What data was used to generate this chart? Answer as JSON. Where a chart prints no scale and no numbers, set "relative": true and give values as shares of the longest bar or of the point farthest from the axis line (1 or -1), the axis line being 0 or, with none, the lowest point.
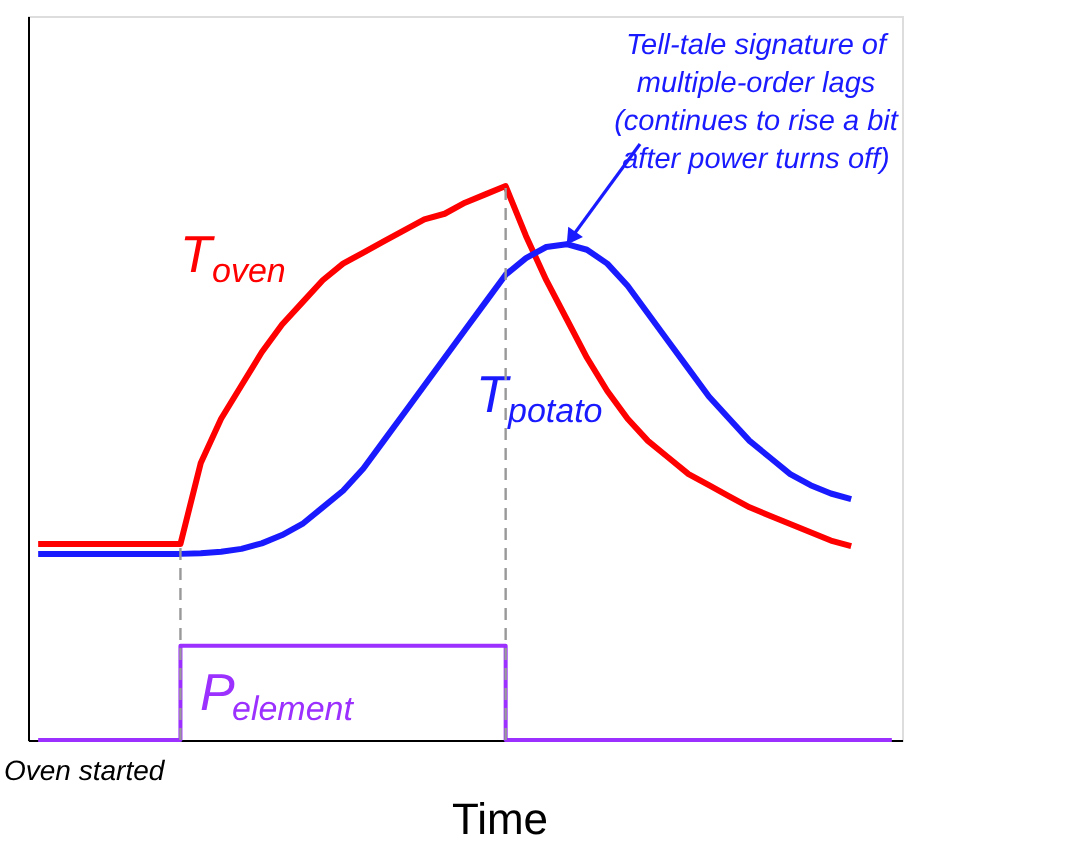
{
  "chart_data": {
    "type": "line",
    "relative": true,
    "xlabel": "Time",
    "tick_labels": false,
    "grid": false,
    "marker": "none",
    "line_style": "solid",
    "categories": [
      null,
      null,
      null,
      null,
      null,
      null,
      null,
      null,
      null,
      null,
      null,
      null,
      null,
      null,
      null,
      null,
      null,
      null,
      null,
      null,
      null,
      null,
      null,
      null,
      null,
      null,
      null,
      null,
      null,
      null,
      null,
      null,
      null,
      null,
      null,
      null,
      null,
      null,
      null,
      null,
      null,
      null,
      null
    ],
    "series": [
      {
        "name": "T$_{oven}$",
        "color": "#ff0000",
        "values": [
          0.354,
          0.354,
          0.354,
          0.354,
          0.354,
          0.354,
          0.354,
          0.354,
          0.5,
          0.58,
          0.64,
          0.7,
          0.75,
          0.79,
          0.83,
          0.86,
          0.88,
          0.9,
          0.92,
          0.94,
          0.95,
          0.97,
          0.985,
          1.0,
          0.91,
          0.83,
          0.76,
          0.69,
          0.63,
          0.58,
          0.54,
          0.51,
          0.48,
          0.46,
          0.44,
          0.42,
          0.405,
          0.39,
          0.375,
          0.36,
          0.35,
          null,
          null
        ]
      },
      {
        "name": "T$_{potato}$",
        "color": "#1a1aff",
        "values": [
          0.336,
          0.336,
          0.336,
          0.336,
          0.336,
          0.336,
          0.336,
          0.336,
          0.337,
          0.34,
          0.345,
          0.355,
          0.37,
          0.39,
          0.42,
          0.45,
          0.49,
          0.54,
          0.59,
          0.64,
          0.69,
          0.74,
          0.79,
          0.84,
          0.87,
          0.89,
          0.895,
          0.885,
          0.86,
          0.82,
          0.77,
          0.72,
          0.67,
          0.62,
          0.58,
          0.54,
          0.51,
          0.48,
          0.46,
          0.445,
          0.435,
          null,
          null
        ]
      },
      {
        "name": "P$_{element}$",
        "type": "step",
        "color": "#9b30ff",
        "values": [
          0,
          0,
          0,
          0,
          0,
          0,
          0,
          0.17,
          0.17,
          0.17,
          0.17,
          0.17,
          0.17,
          0.17,
          0.17,
          0.17,
          0.17,
          0.17,
          0.17,
          0.17,
          0.17,
          0.17,
          0.17,
          0,
          0,
          0,
          0,
          0,
          0,
          0,
          0,
          0,
          0,
          0,
          0,
          0,
          0,
          0,
          0,
          0,
          0,
          0,
          0
        ]
      }
    ],
    "annotations": [
      "Tell-tale signature of\nmultiple-order lags\n(continues to rise a bit\nafter power turns off)",
      "Oven started"
    ]
  }
}
